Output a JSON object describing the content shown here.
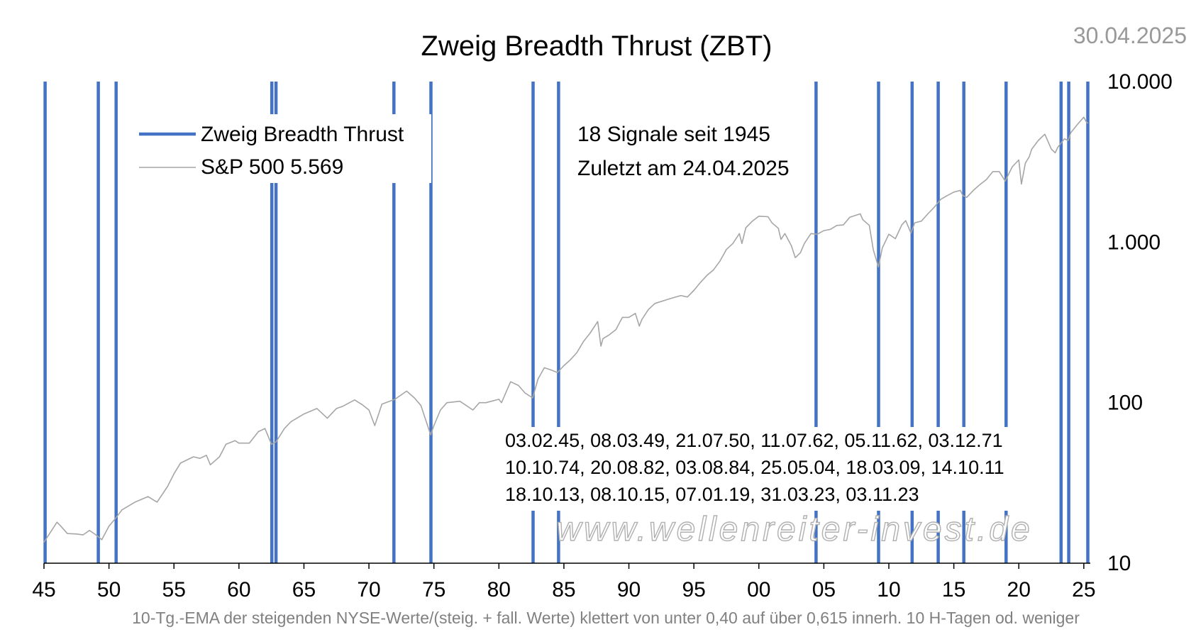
{
  "chart_data": {
    "type": "line",
    "title": "Zweig Breadth Thrust (ZBT)",
    "date_stamp": "30.04.2025",
    "footnote": "10-Tg.-EMA der steigenden NYSE-Werte/(steig. + fall. Werte) klettert von unter 0,40 auf über 0,615 innerh. 10 H-Tagen od. weniger",
    "watermark": "www.wellenreiter-invest.de",
    "legend": [
      {
        "name": "Zweig Breadth Thrust",
        "color": "#4472C4"
      },
      {
        "name": "S&P 500 5.569",
        "color": "#A6A6A6"
      }
    ],
    "info_lines": [
      "18 Signale seit 1945",
      "Zuletzt am 24.04.2025"
    ],
    "signal_list_lines": [
      "03.02.45, 08.03.49, 21.07.50, 11.07.62, 05.11.62, 03.12.71",
      "10.10.74, 20.08.82, 03.08.84, 25.05.04, 18.03.09, 14.10.11",
      "18.10.13, 08.10.15, 07.01.19, 31.03.23, 03.11.23"
    ],
    "x_axis": {
      "range": [
        1945.0,
        2025.5
      ],
      "ticks": [
        {
          "label": "45",
          "year": 1945
        },
        {
          "label": "50",
          "year": 1950
        },
        {
          "label": "55",
          "year": 1955
        },
        {
          "label": "60",
          "year": 1960
        },
        {
          "label": "65",
          "year": 1965
        },
        {
          "label": "70",
          "year": 1970
        },
        {
          "label": "75",
          "year": 1975
        },
        {
          "label": "80",
          "year": 1980
        },
        {
          "label": "85",
          "year": 1985
        },
        {
          "label": "90",
          "year": 1990
        },
        {
          "label": "95",
          "year": 1995
        },
        {
          "label": "00",
          "year": 2000
        },
        {
          "label": "05",
          "year": 2005
        },
        {
          "label": "10",
          "year": 2010
        },
        {
          "label": "15",
          "year": 2015
        },
        {
          "label": "20",
          "year": 2020
        },
        {
          "label": "25",
          "year": 2025
        }
      ]
    },
    "y_axis": {
      "scale": "log",
      "range": [
        10,
        10000
      ],
      "position": "right",
      "ticks": [
        {
          "label": "10",
          "value": 10
        },
        {
          "label": "100",
          "value": 100
        },
        {
          "label": "1.000",
          "value": 1000
        },
        {
          "label": "10.000",
          "value": 10000
        }
      ]
    },
    "signals": [
      {
        "date": "03.02.45",
        "year": 1945.09
      },
      {
        "date": "08.03.49",
        "year": 1949.18
      },
      {
        "date": "21.07.50",
        "year": 1950.55
      },
      {
        "date": "11.07.62",
        "year": 1962.53
      },
      {
        "date": "05.11.62",
        "year": 1962.85
      },
      {
        "date": "03.12.71",
        "year": 1971.92
      },
      {
        "date": "10.10.74",
        "year": 1974.77
      },
      {
        "date": "20.08.82",
        "year": 1982.63
      },
      {
        "date": "03.08.84",
        "year": 1984.59
      },
      {
        "date": "25.05.04",
        "year": 2004.4
      },
      {
        "date": "18.03.09",
        "year": 2009.21
      },
      {
        "date": "14.10.11",
        "year": 2011.79
      },
      {
        "date": "18.10.13",
        "year": 2013.8
      },
      {
        "date": "08.10.15",
        "year": 2015.77
      },
      {
        "date": "07.01.19",
        "year": 2019.02
      },
      {
        "date": "31.03.23",
        "year": 2023.25
      },
      {
        "date": "03.11.23",
        "year": 2023.84
      },
      {
        "date": "24.04.2025",
        "year": 2025.31
      }
    ],
    "series": [
      {
        "name": "S&P 500 5.569",
        "x": [
          1945.0,
          1946.0,
          1946.3,
          1946.8,
          1947.5,
          1948.0,
          1948.5,
          1949.0,
          1949.45,
          1950.0,
          1950.5,
          1951.0,
          1952.0,
          1953.0,
          1953.7,
          1954.5,
          1955.0,
          1955.5,
          1956.0,
          1956.5,
          1957.0,
          1957.5,
          1957.8,
          1958.5,
          1959.0,
          1959.7,
          1960.0,
          1960.8,
          1961.5,
          1962.0,
          1962.5,
          1962.85,
          1963.5,
          1964.0,
          1965.0,
          1966.0,
          1966.8,
          1967.5,
          1968.0,
          1968.9,
          1969.5,
          1970.0,
          1970.45,
          1971.0,
          1972.0,
          1972.9,
          1973.5,
          1974.0,
          1974.75,
          1975.0,
          1975.5,
          1976.0,
          1977.0,
          1978.0,
          1978.5,
          1979.0,
          1980.0,
          1980.2,
          1980.9,
          1981.5,
          1982.0,
          1982.6,
          1983.0,
          1983.5,
          1984.0,
          1984.5,
          1985.0,
          1985.5,
          1986.0,
          1986.5,
          1987.0,
          1987.6,
          1987.85,
          1988.0,
          1988.5,
          1989.0,
          1989.5,
          1990.0,
          1990.5,
          1990.8,
          1991.0,
          1991.5,
          1992.0,
          1993.0,
          1994.0,
          1994.5,
          1995.0,
          1995.5,
          1996.0,
          1996.5,
          1997.0,
          1997.5,
          1998.0,
          1998.5,
          1998.7,
          1999.0,
          1999.5,
          2000.0,
          2000.7,
          2001.0,
          2001.5,
          2001.7,
          2002.0,
          2002.5,
          2002.8,
          2003.2,
          2003.5,
          2004.0,
          2004.5,
          2005.0,
          2005.5,
          2006.0,
          2006.5,
          2007.0,
          2007.8,
          2008.0,
          2008.5,
          2008.8,
          2009.2,
          2009.5,
          2010.0,
          2010.5,
          2011.0,
          2011.3,
          2011.7,
          2012.0,
          2012.5,
          2013.0,
          2013.5,
          2014.0,
          2014.5,
          2015.0,
          2015.5,
          2015.7,
          2016.0,
          2016.5,
          2017.0,
          2017.5,
          2018.0,
          2018.5,
          2018.95,
          2019.5,
          2020.0,
          2020.2,
          2020.5,
          2020.8,
          2021.0,
          2021.5,
          2022.0,
          2022.5,
          2022.8,
          2023.0,
          2023.5,
          2023.8,
          2024.0,
          2024.5,
          2025.0,
          2025.2,
          2025.33
        ],
        "values": [
          13.5,
          18.0,
          17.0,
          15.3,
          15.2,
          15.0,
          16.0,
          15.0,
          14.0,
          17.0,
          19.0,
          21.5,
          24.0,
          26.0,
          24.0,
          30.0,
          36.0,
          42.0,
          44.0,
          46.0,
          45.0,
          47.0,
          41.0,
          46.0,
          55.0,
          58.0,
          56.0,
          56.0,
          66.0,
          69.0,
          55.0,
          57.0,
          69.0,
          76.0,
          85.0,
          92.0,
          80.0,
          92.0,
          95.0,
          104.0,
          97.0,
          90.0,
          72.0,
          98.0,
          105.0,
          118.0,
          107.0,
          96.0,
          63.0,
          72.0,
          90.0,
          100.0,
          102.0,
          90.0,
          100.0,
          100.0,
          105.0,
          100.0,
          135.0,
          128.0,
          115.0,
          107.0,
          140.0,
          165.0,
          160.0,
          154.0,
          170.0,
          185.0,
          205.0,
          240.0,
          270.0,
          320.0,
          225.0,
          250.0,
          265.0,
          285.0,
          340.0,
          340.0,
          360.0,
          300.0,
          330.0,
          380.0,
          415.0,
          440.0,
          465.0,
          455.0,
          500.0,
          560.0,
          620.0,
          670.0,
          760.0,
          900.0,
          980.0,
          1130.0,
          980.0,
          1230.0,
          1350.0,
          1450.0,
          1440.0,
          1320.0,
          1220.0,
          1040.0,
          1130.0,
          950.0,
          800.0,
          860.0,
          980.0,
          1130.0,
          1120.0,
          1180.0,
          1200.0,
          1270.0,
          1280.0,
          1430.0,
          1500.0,
          1380.0,
          1270.0,
          900.0,
          700.0,
          920.0,
          1120.0,
          1050.0,
          1280.0,
          1360.0,
          1140.0,
          1320.0,
          1350.0,
          1500.0,
          1650.0,
          1850.0,
          1950.0,
          2050.0,
          2100.0,
          1950.0,
          1900.0,
          2100.0,
          2280.0,
          2450.0,
          2750.0,
          2750.0,
          2400.0,
          2950.0,
          3250.0,
          2300.0,
          3100.0,
          3400.0,
          3800.0,
          4300.0,
          4700.0,
          3800.0,
          3600.0,
          3900.0,
          4400.0,
          4300.0,
          4800.0,
          5400.0,
          6000.0,
          5600.0,
          5500.0
        ]
      }
    ]
  }
}
